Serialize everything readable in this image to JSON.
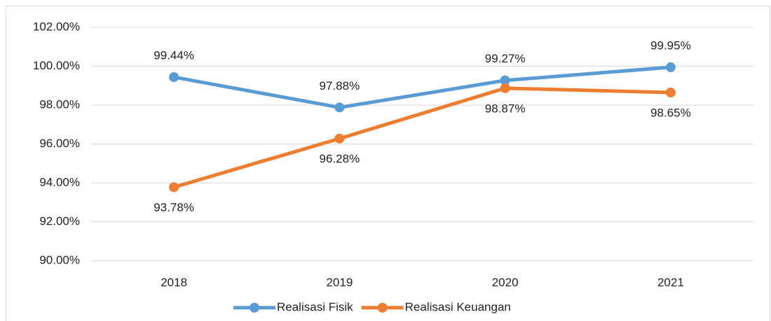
{
  "chart_data": {
    "type": "line",
    "categories": [
      "2018",
      "2019",
      "2020",
      "2021"
    ],
    "series": [
      {
        "name": "Realisasi Fisik",
        "color": "#5b9bd5",
        "values": [
          99.44,
          97.88,
          99.27,
          99.95
        ],
        "value_labels": [
          "99.44%",
          "97.88%",
          "99.27%",
          "99.95%"
        ]
      },
      {
        "name": "Realisasi Keuangan",
        "color": "#ed7d31",
        "values": [
          93.78,
          96.28,
          98.87,
          98.65
        ],
        "value_labels": [
          "93.78%",
          "96.28%",
          "98.87%",
          "98.65%"
        ]
      }
    ],
    "ylim": [
      90,
      102
    ],
    "yticks": [
      {
        "value": 90,
        "label": "90.00%"
      },
      {
        "value": 92,
        "label": "92.00%"
      },
      {
        "value": 94,
        "label": "94.00%"
      },
      {
        "value": 96,
        "label": "96.00%"
      },
      {
        "value": 98,
        "label": "98.00%"
      },
      {
        "value": 100,
        "label": "100.00%"
      },
      {
        "value": 102,
        "label": "102.00%"
      }
    ],
    "grid": true,
    "legend": "bottom"
  }
}
